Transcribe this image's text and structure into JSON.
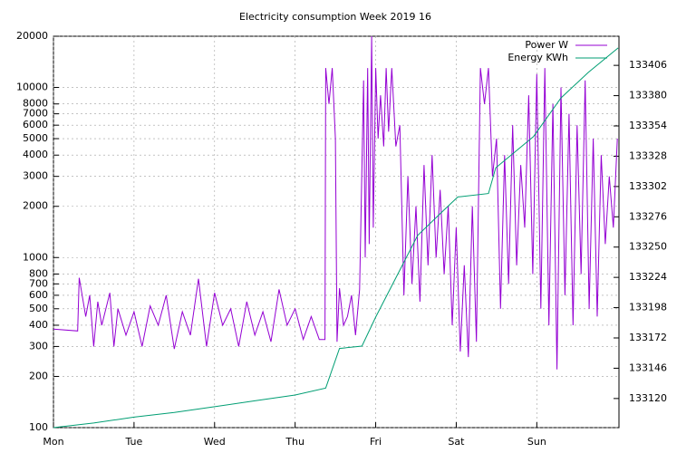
{
  "chart_data": {
    "type": "line",
    "title": "Electricity consumption Week 2019 16",
    "xlim": [
      0,
      7.02
    ],
    "xticks": [
      {
        "value": 0,
        "label": "Mon"
      },
      {
        "value": 1,
        "label": "Tue"
      },
      {
        "value": 2,
        "label": "Wed"
      },
      {
        "value": 3,
        "label": "Thu"
      },
      {
        "value": 4,
        "label": "Fri"
      },
      {
        "value": 5,
        "label": "Sat"
      },
      {
        "value": 6,
        "label": "Sun"
      }
    ],
    "ylim": [
      100,
      20000
    ],
    "ylog": true,
    "yticks": [
      100,
      200,
      300,
      400,
      500,
      600,
      700,
      800,
      1000,
      2000,
      3000,
      4000,
      5000,
      6000,
      7000,
      8000,
      10000,
      20000
    ],
    "y2lim": [
      133095,
      133431
    ],
    "y2ticks": [
      133120,
      133146,
      133172,
      133198,
      133224,
      133250,
      133276,
      133302,
      133328,
      133354,
      133380,
      133406
    ],
    "grid": true,
    "legend": "top-right",
    "series": [
      {
        "name": "Power W",
        "color": "#9400d3",
        "x": [
          0,
          0.3,
          0.32,
          0.4,
          0.45,
          0.5,
          0.55,
          0.6,
          0.7,
          0.75,
          0.8,
          0.9,
          1.0,
          1.1,
          1.2,
          1.3,
          1.4,
          1.5,
          1.6,
          1.7,
          1.8,
          1.9,
          2.0,
          2.1,
          2.2,
          2.3,
          2.4,
          2.5,
          2.6,
          2.7,
          2.8,
          2.9,
          3.0,
          3.1,
          3.2,
          3.3,
          3.37,
          3.38,
          3.42,
          3.46,
          3.5,
          3.52,
          3.55,
          3.6,
          3.65,
          3.7,
          3.75,
          3.8,
          3.85,
          3.87,
          3.9,
          3.92,
          3.95,
          3.97,
          4.0,
          4.03,
          4.06,
          4.1,
          4.13,
          4.16,
          4.2,
          4.25,
          4.3,
          4.35,
          4.4,
          4.45,
          4.5,
          4.55,
          4.6,
          4.65,
          4.7,
          4.75,
          4.8,
          4.85,
          4.9,
          4.95,
          5.0,
          5.05,
          5.1,
          5.15,
          5.2,
          5.25,
          5.3,
          5.35,
          5.4,
          5.45,
          5.5,
          5.55,
          5.6,
          5.65,
          5.7,
          5.75,
          5.8,
          5.85,
          5.9,
          5.95,
          6.0,
          6.05,
          6.1,
          6.15,
          6.2,
          6.25,
          6.3,
          6.35,
          6.4,
          6.45,
          6.5,
          6.55,
          6.6,
          6.65,
          6.7,
          6.75,
          6.8,
          6.85,
          6.9,
          6.95,
          7.0
        ],
        "values": [
          380,
          370,
          760,
          450,
          600,
          300,
          550,
          400,
          620,
          300,
          500,
          350,
          480,
          300,
          520,
          400,
          600,
          290,
          480,
          350,
          750,
          300,
          620,
          400,
          500,
          300,
          550,
          350,
          480,
          320,
          650,
          400,
          500,
          330,
          450,
          330,
          330,
          13000,
          8000,
          13000,
          5000,
          320,
          660,
          400,
          450,
          600,
          350,
          650,
          11000,
          1000,
          13000,
          1200,
          20000,
          1500,
          13000,
          5000,
          9000,
          4500,
          13000,
          5500,
          13000,
          4500,
          6000,
          600,
          3000,
          700,
          2000,
          550,
          3500,
          900,
          4000,
          1000,
          2500,
          800,
          2000,
          400,
          1500,
          280,
          900,
          260,
          2000,
          320,
          13000,
          8000,
          13000,
          3000,
          5000,
          500,
          4000,
          700,
          6000,
          900,
          3500,
          1500,
          9000,
          800,
          12000,
          500,
          13000,
          400,
          8000,
          220,
          10000,
          600,
          7000,
          400,
          6000,
          800,
          11000,
          500,
          5000,
          450,
          4000,
          1200,
          3000,
          1500,
          5000
        ]
      },
      {
        "name": "Energy KWh",
        "color": "#009e73",
        "axis": "y2",
        "x": [
          0,
          0.5,
          1,
          1.5,
          2,
          2.5,
          3,
          3.38,
          3.55,
          3.83,
          4.0,
          4.35,
          4.52,
          4.85,
          5.02,
          5.4,
          5.49,
          5.96,
          6.3,
          6.64,
          7.01
        ],
        "values": [
          133095,
          133099,
          133104,
          133108,
          133113,
          133118,
          133123,
          133129,
          133163,
          133165,
          133190,
          133237,
          133260,
          133282,
          133293,
          133296,
          133318,
          133345,
          133378,
          133400,
          133421
        ]
      }
    ]
  }
}
